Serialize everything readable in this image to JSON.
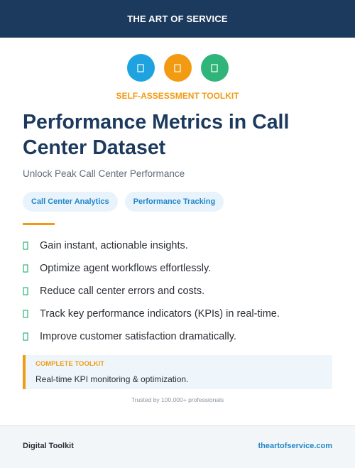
{
  "header": {
    "brand": "THE ART OF SERVICE"
  },
  "icons": [
    {
      "name": "file-icon",
      "color": "#1fa3e0"
    },
    {
      "name": "file-icon",
      "color": "#f29a12"
    },
    {
      "name": "file-icon",
      "color": "#2fb47a"
    }
  ],
  "hero": {
    "kicker": "SELF-ASSESSMENT TOOLKIT",
    "title": "Performance Metrics in Call Center Dataset",
    "subtitle": "Unlock Peak Call Center Performance"
  },
  "tags": [
    "Call Center Analytics",
    "Performance Tracking"
  ],
  "benefits": [
    "Gain instant, actionable insights.",
    "Optimize agent workflows effortlessly.",
    "Reduce call center errors and costs.",
    "Track key performance indicators (KPIs) in real-time.",
    "Improve customer satisfaction dramatically."
  ],
  "callout": {
    "label": "COMPLETE TOOLKIT",
    "text": "Real-time KPI monitoring & optimization."
  },
  "trust": "Trusted by 100,000+ professionals",
  "footer": {
    "left": "Digital Toolkit",
    "right": "theartofservice.com"
  },
  "colors": {
    "navy": "#1c3a5e",
    "orange": "#f29a12",
    "blue": "#1f86c9",
    "green": "#2fb47a"
  }
}
